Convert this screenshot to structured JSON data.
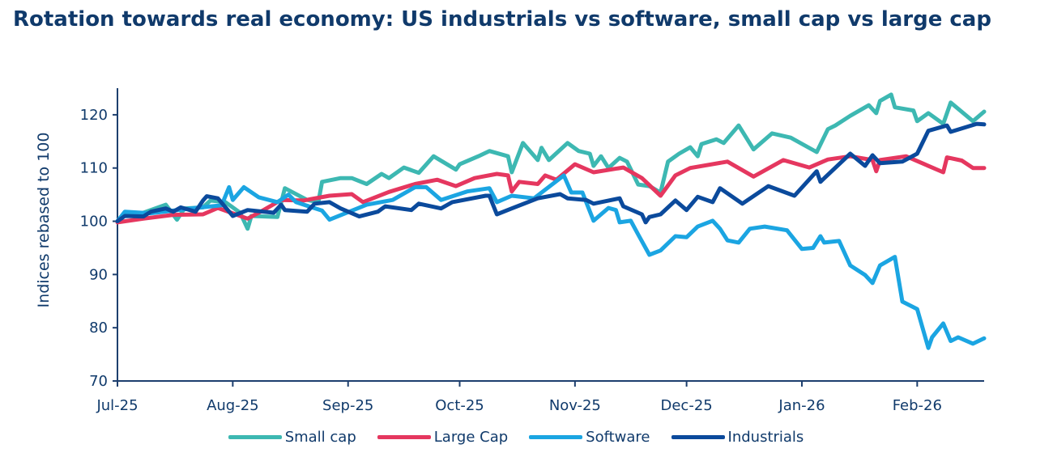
{
  "chart_data": {
    "type": "line",
    "title": "Rotation towards real economy: US industrials vs software, small cap vs large cap",
    "xlabel": "",
    "ylabel": "Indices rebased to 100",
    "ylim": [
      70,
      125
    ],
    "xlim": [
      "2025-07-01",
      "2026-02-19"
    ],
    "y_ticks": [
      70,
      80,
      90,
      100,
      110,
      120
    ],
    "x_ticks": [
      {
        "label": "Jul-25",
        "date": "2025-07-01"
      },
      {
        "label": "Aug-25",
        "date": "2025-08-01"
      },
      {
        "label": "Sep-25",
        "date": "2025-09-01"
      },
      {
        "label": "Oct-25",
        "date": "2025-10-01"
      },
      {
        "label": "Nov-25",
        "date": "2025-11-01"
      },
      {
        "label": "Dec-25",
        "date": "2025-12-01"
      },
      {
        "label": "Jan-26",
        "date": "2026-01-01"
      },
      {
        "label": "Feb-26",
        "date": "2026-02-01"
      }
    ],
    "grid": false,
    "legend_position": "bottom",
    "series": [
      {
        "name": "Small cap",
        "color": "#3db8b2",
        "points": [
          [
            "2025-07-01",
            100
          ],
          [
            "2025-07-03",
            101.5
          ],
          [
            "2025-07-08",
            101.6
          ],
          [
            "2025-07-12",
            102.6
          ],
          [
            "2025-07-14",
            103.1
          ],
          [
            "2025-07-17",
            100.3
          ],
          [
            "2025-07-19",
            102.4
          ],
          [
            "2025-07-24",
            102.6
          ],
          [
            "2025-07-26",
            103.9
          ],
          [
            "2025-07-30",
            103.6
          ],
          [
            "2025-08-03",
            101.6
          ],
          [
            "2025-08-05",
            98.6
          ],
          [
            "2025-08-06",
            101
          ],
          [
            "2025-08-13",
            100.8
          ],
          [
            "2025-08-15",
            106.2
          ],
          [
            "2025-08-21",
            104
          ],
          [
            "2025-08-24",
            103.6
          ],
          [
            "2025-08-25",
            107.4
          ],
          [
            "2025-08-30",
            108.1
          ],
          [
            "2025-09-02",
            108.1
          ],
          [
            "2025-09-06",
            107
          ],
          [
            "2025-09-10",
            108.9
          ],
          [
            "2025-09-12",
            108.1
          ],
          [
            "2025-09-16",
            110.1
          ],
          [
            "2025-09-20",
            109.1
          ],
          [
            "2025-09-24",
            112.2
          ],
          [
            "2025-09-30",
            109.7
          ],
          [
            "2025-10-01",
            110.7
          ],
          [
            "2025-10-06",
            112.2
          ],
          [
            "2025-10-09",
            113.2
          ],
          [
            "2025-10-14",
            112.2
          ],
          [
            "2025-10-15",
            109.2
          ],
          [
            "2025-10-18",
            114.7
          ],
          [
            "2025-10-22",
            111.5
          ],
          [
            "2025-10-23",
            113.8
          ],
          [
            "2025-10-25",
            111.5
          ],
          [
            "2025-10-30",
            114.7
          ],
          [
            "2025-11-02",
            113.2
          ],
          [
            "2025-11-05",
            112.7
          ],
          [
            "2025-11-06",
            110.4
          ],
          [
            "2025-11-08",
            112.2
          ],
          [
            "2025-11-10",
            110
          ],
          [
            "2025-11-13",
            111.9
          ],
          [
            "2025-11-15",
            111.2
          ],
          [
            "2025-11-18",
            106.9
          ],
          [
            "2025-11-21",
            106.6
          ],
          [
            "2025-11-24",
            105.4
          ],
          [
            "2025-11-26",
            111.2
          ],
          [
            "2025-11-29",
            112.7
          ],
          [
            "2025-12-02",
            113.9
          ],
          [
            "2025-12-04",
            112.2
          ],
          [
            "2025-12-05",
            114.5
          ],
          [
            "2025-12-09",
            115.4
          ],
          [
            "2025-12-11",
            114.7
          ],
          [
            "2025-12-15",
            118
          ],
          [
            "2025-12-19",
            113.5
          ],
          [
            "2025-12-24",
            116.5
          ],
          [
            "2025-12-29",
            115.7
          ],
          [
            "2026-01-05",
            113
          ],
          [
            "2026-01-08",
            117.3
          ],
          [
            "2026-01-10",
            118
          ],
          [
            "2026-01-14",
            119.8
          ],
          [
            "2026-01-19",
            121.8
          ],
          [
            "2026-01-21",
            120.3
          ],
          [
            "2026-01-22",
            122.6
          ],
          [
            "2026-01-25",
            123.8
          ],
          [
            "2026-01-26",
            121.4
          ],
          [
            "2026-01-31",
            120.8
          ],
          [
            "2026-02-01",
            118.8
          ],
          [
            "2026-02-04",
            120.3
          ],
          [
            "2026-02-08",
            118.3
          ],
          [
            "2026-02-10",
            122.3
          ],
          [
            "2026-02-16",
            118.8
          ],
          [
            "2026-02-19",
            120.6
          ]
        ]
      },
      {
        "name": "Large Cap",
        "color": "#e5375f",
        "points": [
          [
            "2025-07-01",
            99.8
          ],
          [
            "2025-07-08",
            100.5
          ],
          [
            "2025-07-16",
            101.2
          ],
          [
            "2025-07-24",
            101.3
          ],
          [
            "2025-07-28",
            102.5
          ],
          [
            "2025-08-05",
            100.5
          ],
          [
            "2025-08-09",
            102
          ],
          [
            "2025-08-14",
            104
          ],
          [
            "2025-08-20",
            103.9
          ],
          [
            "2025-08-27",
            104.8
          ],
          [
            "2025-09-02",
            105.1
          ],
          [
            "2025-09-05",
            103.6
          ],
          [
            "2025-09-12",
            105.5
          ],
          [
            "2025-09-19",
            107
          ],
          [
            "2025-09-25",
            107.8
          ],
          [
            "2025-09-30",
            106.6
          ],
          [
            "2025-10-05",
            108.1
          ],
          [
            "2025-10-11",
            108.9
          ],
          [
            "2025-10-14",
            108.6
          ],
          [
            "2025-10-15",
            105.6
          ],
          [
            "2025-10-17",
            107.4
          ],
          [
            "2025-10-22",
            107
          ],
          [
            "2025-10-24",
            108.6
          ],
          [
            "2025-10-27",
            107.8
          ],
          [
            "2025-11-01",
            110.7
          ],
          [
            "2025-11-06",
            109.2
          ],
          [
            "2025-11-14",
            110.1
          ],
          [
            "2025-11-19",
            108.1
          ],
          [
            "2025-11-24",
            104.8
          ],
          [
            "2025-11-28",
            108.6
          ],
          [
            "2025-12-02",
            110
          ],
          [
            "2025-12-12",
            111.2
          ],
          [
            "2025-12-19",
            108.4
          ],
          [
            "2025-12-27",
            111.5
          ],
          [
            "2026-01-03",
            110.1
          ],
          [
            "2026-01-08",
            111.6
          ],
          [
            "2026-01-14",
            112.2
          ],
          [
            "2026-01-20",
            111.5
          ],
          [
            "2026-01-21",
            109.4
          ],
          [
            "2026-01-22",
            111.5
          ],
          [
            "2026-01-29",
            112.2
          ],
          [
            "2026-02-08",
            109.2
          ],
          [
            "2026-02-09",
            112
          ],
          [
            "2026-02-13",
            111.4
          ],
          [
            "2026-02-16",
            110
          ],
          [
            "2026-02-19",
            110
          ]
        ]
      },
      {
        "name": "Software",
        "color": "#1ba5e2",
        "points": [
          [
            "2025-07-01",
            100
          ],
          [
            "2025-07-03",
            101.8
          ],
          [
            "2025-07-10",
            101.5
          ],
          [
            "2025-07-16",
            102
          ],
          [
            "2025-07-22",
            102.5
          ],
          [
            "2025-07-29",
            103
          ],
          [
            "2025-07-31",
            106.4
          ],
          [
            "2025-08-01",
            104
          ],
          [
            "2025-08-04",
            106.4
          ],
          [
            "2025-08-08",
            104.5
          ],
          [
            "2025-08-13",
            103.6
          ],
          [
            "2025-08-16",
            105
          ],
          [
            "2025-08-18",
            103.6
          ],
          [
            "2025-08-25",
            102
          ],
          [
            "2025-08-27",
            100.3
          ],
          [
            "2025-09-06",
            103.1
          ],
          [
            "2025-09-13",
            104
          ],
          [
            "2025-09-19",
            106.4
          ],
          [
            "2025-09-22",
            106.4
          ],
          [
            "2025-09-26",
            104
          ],
          [
            "2025-10-03",
            105.6
          ],
          [
            "2025-10-09",
            106.2
          ],
          [
            "2025-10-11",
            103.6
          ],
          [
            "2025-10-15",
            104.8
          ],
          [
            "2025-10-21",
            104.3
          ],
          [
            "2025-10-29",
            108.6
          ],
          [
            "2025-10-31",
            105.4
          ],
          [
            "2025-11-03",
            105.4
          ],
          [
            "2025-11-06",
            100.1
          ],
          [
            "2025-11-10",
            102.5
          ],
          [
            "2025-11-12",
            102.1
          ],
          [
            "2025-11-13",
            99.8
          ],
          [
            "2025-11-16",
            100.1
          ],
          [
            "2025-11-18",
            97.5
          ],
          [
            "2025-11-21",
            93.7
          ],
          [
            "2025-11-24",
            94.5
          ],
          [
            "2025-11-28",
            97.2
          ],
          [
            "2025-12-01",
            97
          ],
          [
            "2025-12-04",
            99
          ],
          [
            "2025-12-08",
            100.1
          ],
          [
            "2025-12-10",
            98.6
          ],
          [
            "2025-12-12",
            96.4
          ],
          [
            "2025-12-15",
            96
          ],
          [
            "2025-12-18",
            98.6
          ],
          [
            "2025-12-22",
            99
          ],
          [
            "2025-12-28",
            98.3
          ],
          [
            "2026-01-01",
            94.8
          ],
          [
            "2026-01-04",
            95
          ],
          [
            "2026-01-06",
            97.2
          ],
          [
            "2026-01-07",
            96
          ],
          [
            "2026-01-11",
            96.3
          ],
          [
            "2026-01-14",
            91.7
          ],
          [
            "2026-01-18",
            89.9
          ],
          [
            "2026-01-20",
            88.4
          ],
          [
            "2026-01-22",
            91.7
          ],
          [
            "2026-01-26",
            93.3
          ],
          [
            "2026-01-28",
            84.9
          ],
          [
            "2026-02-01",
            83.5
          ],
          [
            "2026-02-04",
            76.2
          ],
          [
            "2026-02-05",
            78.2
          ],
          [
            "2026-02-08",
            80.8
          ],
          [
            "2026-02-10",
            77.5
          ],
          [
            "2026-02-12",
            78.2
          ],
          [
            "2026-02-16",
            77
          ],
          [
            "2026-02-19",
            78
          ]
        ]
      },
      {
        "name": "Industrials",
        "color": "#0b4a9c",
        "points": [
          [
            "2025-07-01",
            100
          ],
          [
            "2025-07-03",
            101
          ],
          [
            "2025-07-08",
            100.9
          ],
          [
            "2025-07-10",
            101.8
          ],
          [
            "2025-07-14",
            102.4
          ],
          [
            "2025-07-16",
            101.8
          ],
          [
            "2025-07-18",
            102.6
          ],
          [
            "2025-07-22",
            101.8
          ],
          [
            "2025-07-24",
            103.9
          ],
          [
            "2025-07-25",
            104.7
          ],
          [
            "2025-07-28",
            104.3
          ],
          [
            "2025-08-01",
            101
          ],
          [
            "2025-08-05",
            102.1
          ],
          [
            "2025-08-12",
            101.6
          ],
          [
            "2025-08-14",
            103.1
          ],
          [
            "2025-08-15",
            102.1
          ],
          [
            "2025-08-21",
            101.8
          ],
          [
            "2025-08-23",
            103.3
          ],
          [
            "2025-08-27",
            103.6
          ],
          [
            "2025-08-30",
            102.4
          ],
          [
            "2025-09-04",
            100.9
          ],
          [
            "2025-09-09",
            101.8
          ],
          [
            "2025-09-11",
            102.8
          ],
          [
            "2025-09-18",
            102.1
          ],
          [
            "2025-09-20",
            103.3
          ],
          [
            "2025-09-26",
            102.4
          ],
          [
            "2025-09-29",
            103.6
          ],
          [
            "2025-10-08",
            104.8
          ],
          [
            "2025-10-09",
            104.8
          ],
          [
            "2025-10-11",
            101.3
          ],
          [
            "2025-10-15",
            102.4
          ],
          [
            "2025-10-22",
            104.3
          ],
          [
            "2025-10-28",
            105.1
          ],
          [
            "2025-10-30",
            104.3
          ],
          [
            "2025-11-04",
            104
          ],
          [
            "2025-11-06",
            103.3
          ],
          [
            "2025-11-13",
            104.3
          ],
          [
            "2025-11-14",
            102.8
          ],
          [
            "2025-11-19",
            101.3
          ],
          [
            "2025-11-20",
            99.8
          ],
          [
            "2025-11-21",
            100.8
          ],
          [
            "2025-11-24",
            101.3
          ],
          [
            "2025-11-28",
            103.9
          ],
          [
            "2025-12-01",
            102.1
          ],
          [
            "2025-12-04",
            104.6
          ],
          [
            "2025-12-08",
            103.6
          ],
          [
            "2025-12-10",
            106.2
          ],
          [
            "2025-12-16",
            103.3
          ],
          [
            "2025-12-23",
            106.6
          ],
          [
            "2025-12-30",
            104.8
          ],
          [
            "2026-01-05",
            109.4
          ],
          [
            "2026-01-06",
            107.4
          ],
          [
            "2026-01-14",
            112.7
          ],
          [
            "2026-01-18",
            110.4
          ],
          [
            "2026-01-20",
            112.4
          ],
          [
            "2026-01-22",
            110.9
          ],
          [
            "2026-01-28",
            111.2
          ],
          [
            "2026-02-01",
            112.7
          ],
          [
            "2026-02-04",
            117
          ],
          [
            "2026-02-09",
            118
          ],
          [
            "2026-02-10",
            116.8
          ],
          [
            "2026-02-17",
            118.3
          ],
          [
            "2026-02-19",
            118.2
          ]
        ]
      }
    ]
  }
}
